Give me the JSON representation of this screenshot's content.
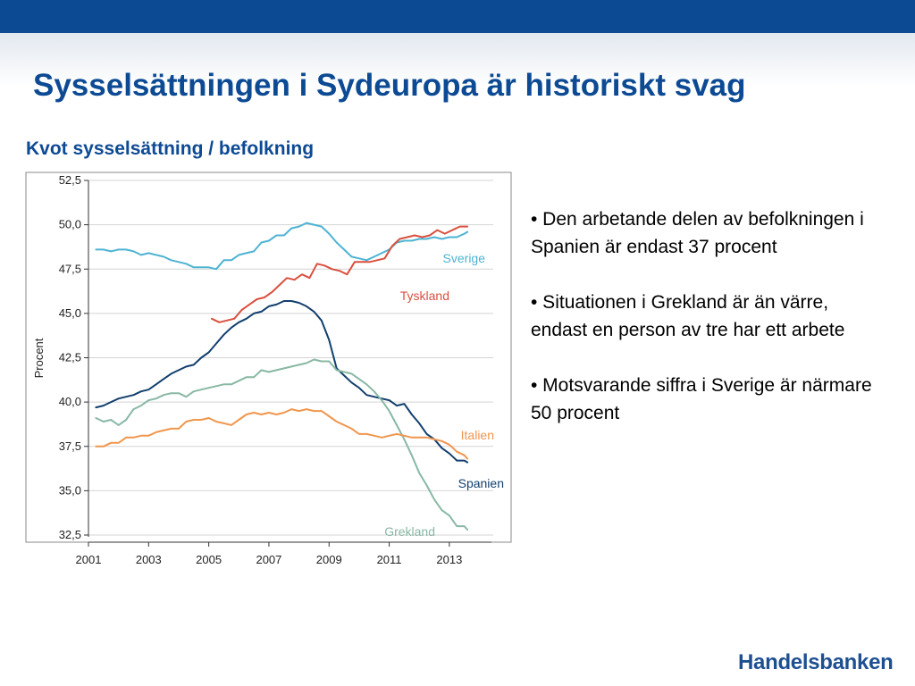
{
  "header": {
    "title": "Sysselsättningen i Sydeuropa är historiskt svag",
    "chart_heading": "Kvot sysselsättning / befolkning"
  },
  "bullets": [
    "• Den arbetande delen av befolkningen i Spanien är endast 37 procent",
    "• Situationen i Grekland är än värre, endast en person av tre har ett arbete",
    "• Motsvarande siffra i Sverige är närmare 50 procent"
  ],
  "brand": "Handelsbanken",
  "chart_data": {
    "type": "line",
    "title": "Kvot sysselsättning / befolkning",
    "ylabel": "Procent",
    "xlabel": "",
    "xlim": [
      2001,
      2014.4
    ],
    "ylim": [
      32.5,
      52.5
    ],
    "xticks": [
      2001,
      2003,
      2005,
      2007,
      2009,
      2011,
      2013
    ],
    "xtick_labels": [
      "2001",
      "2003",
      "2005",
      "2007",
      "2009",
      "2011",
      "2013"
    ],
    "yticks": [
      32.5,
      35.0,
      37.5,
      40.0,
      42.5,
      45.0,
      47.5,
      50.0,
      52.5
    ],
    "ytick_labels": [
      "32,5",
      "35,0",
      "37,5",
      "40,0",
      "42,5",
      "45,0",
      "47,5",
      "50,0",
      "52,5"
    ],
    "grid": true,
    "legend": "inline labels",
    "series": [
      {
        "name": "Sverige",
        "color": "#4eb3d3",
        "x": [
          2001.25,
          2001.5,
          2001.75,
          2002,
          2002.25,
          2002.5,
          2002.75,
          2003,
          2003.25,
          2003.5,
          2003.75,
          2004,
          2004.25,
          2004.5,
          2004.75,
          2005,
          2005.25,
          2005.5,
          2005.75,
          2006,
          2006.25,
          2006.5,
          2006.75,
          2007,
          2007.25,
          2007.5,
          2007.75,
          2008,
          2008.25,
          2008.5,
          2008.75,
          2009,
          2009.25,
          2009.5,
          2009.75,
          2010,
          2010.25,
          2010.5,
          2010.75,
          2011,
          2011.25,
          2011.5,
          2011.75,
          2012,
          2012.25,
          2012.5,
          2012.75,
          2013,
          2013.25,
          2013.5,
          2013.6
        ],
        "values": [
          48.6,
          48.6,
          48.5,
          48.6,
          48.6,
          48.5,
          48.3,
          48.4,
          48.3,
          48.2,
          48.0,
          47.9,
          47.8,
          47.6,
          47.6,
          47.6,
          47.5,
          48.0,
          48.0,
          48.3,
          48.4,
          48.5,
          49.0,
          49.1,
          49.4,
          49.4,
          49.8,
          49.9,
          50.1,
          50.0,
          49.9,
          49.5,
          49.0,
          48.6,
          48.2,
          48.1,
          48.0,
          48.2,
          48.4,
          48.6,
          49.0,
          49.1,
          49.1,
          49.2,
          49.2,
          49.3,
          49.2,
          49.3,
          49.3,
          49.5,
          49.6
        ]
      },
      {
        "name": "Tyskland",
        "color": "#d9503e",
        "x": [
          2005.1,
          2005.35,
          2005.6,
          2005.85,
          2006.1,
          2006.35,
          2006.6,
          2006.85,
          2007.1,
          2007.35,
          2007.6,
          2007.85,
          2008.1,
          2008.35,
          2008.6,
          2008.85,
          2009.1,
          2009.35,
          2009.6,
          2009.85,
          2010.1,
          2010.35,
          2010.6,
          2010.85,
          2011.1,
          2011.35,
          2011.6,
          2011.85,
          2012.1,
          2012.35,
          2012.6,
          2012.85,
          2013.1,
          2013.35,
          2013.6
        ],
        "values": [
          44.7,
          44.5,
          44.6,
          44.7,
          45.2,
          45.5,
          45.8,
          45.9,
          46.2,
          46.6,
          47.0,
          46.9,
          47.2,
          47.0,
          47.8,
          47.7,
          47.5,
          47.4,
          47.2,
          47.9,
          47.9,
          47.9,
          48.0,
          48.1,
          48.8,
          49.2,
          49.3,
          49.4,
          49.3,
          49.4,
          49.7,
          49.5,
          49.7,
          49.9,
          49.9
        ]
      },
      {
        "name": "Spanien",
        "color": "#123f6e",
        "x": [
          2001.25,
          2001.5,
          2001.75,
          2002,
          2002.25,
          2002.5,
          2002.75,
          2003,
          2003.25,
          2003.5,
          2003.75,
          2004,
          2004.25,
          2004.5,
          2004.75,
          2005,
          2005.25,
          2005.5,
          2005.75,
          2006,
          2006.25,
          2006.5,
          2006.75,
          2007,
          2007.25,
          2007.5,
          2007.75,
          2008,
          2008.25,
          2008.5,
          2008.75,
          2009,
          2009.25,
          2009.5,
          2009.75,
          2010,
          2010.25,
          2010.5,
          2010.75,
          2011,
          2011.25,
          2011.5,
          2011.75,
          2012,
          2012.25,
          2012.5,
          2012.75,
          2013,
          2013.25,
          2013.5,
          2013.6
        ],
        "values": [
          39.7,
          39.8,
          40.0,
          40.2,
          40.3,
          40.4,
          40.6,
          40.7,
          41.0,
          41.3,
          41.6,
          41.8,
          42.0,
          42.1,
          42.5,
          42.8,
          43.3,
          43.8,
          44.2,
          44.5,
          44.7,
          45.0,
          45.1,
          45.4,
          45.5,
          45.7,
          45.7,
          45.6,
          45.4,
          45.1,
          44.6,
          43.5,
          41.9,
          41.5,
          41.1,
          40.8,
          40.4,
          40.3,
          40.2,
          40.1,
          39.8,
          39.9,
          39.3,
          38.8,
          38.2,
          37.9,
          37.4,
          37.1,
          36.7,
          36.7,
          36.6
        ]
      },
      {
        "name": "Grekland",
        "color": "#88b8a3",
        "x": [
          2001.25,
          2001.5,
          2001.75,
          2002,
          2002.25,
          2002.5,
          2002.75,
          2003,
          2003.25,
          2003.5,
          2003.75,
          2004,
          2004.25,
          2004.5,
          2004.75,
          2005,
          2005.25,
          2005.5,
          2005.75,
          2006,
          2006.25,
          2006.5,
          2006.75,
          2007,
          2007.25,
          2007.5,
          2007.75,
          2008,
          2008.25,
          2008.5,
          2008.75,
          2009,
          2009.25,
          2009.5,
          2009.75,
          2010,
          2010.25,
          2010.5,
          2010.75,
          2011,
          2011.25,
          2011.5,
          2011.75,
          2012,
          2012.25,
          2012.5,
          2012.75,
          2013,
          2013.25,
          2013.5,
          2013.6
        ],
        "values": [
          39.1,
          38.9,
          39.0,
          38.7,
          39.0,
          39.6,
          39.8,
          40.1,
          40.2,
          40.4,
          40.5,
          40.5,
          40.3,
          40.6,
          40.7,
          40.8,
          40.9,
          41.0,
          41.0,
          41.2,
          41.4,
          41.4,
          41.8,
          41.7,
          41.8,
          41.9,
          42.0,
          42.1,
          42.2,
          42.4,
          42.3,
          42.3,
          41.8,
          41.7,
          41.6,
          41.3,
          41.0,
          40.6,
          40.1,
          39.5,
          38.7,
          37.9,
          37.0,
          36.0,
          35.3,
          34.5,
          33.9,
          33.6,
          33.0,
          33.0,
          32.8
        ]
      },
      {
        "name": "Italien",
        "color": "#f0964d",
        "x": [
          2001.25,
          2001.5,
          2001.75,
          2002,
          2002.25,
          2002.5,
          2002.75,
          2003,
          2003.25,
          2003.5,
          2003.75,
          2004,
          2004.25,
          2004.5,
          2004.75,
          2005,
          2005.25,
          2005.5,
          2005.75,
          2006,
          2006.25,
          2006.5,
          2006.75,
          2007,
          2007.25,
          2007.5,
          2007.75,
          2008,
          2008.25,
          2008.5,
          2008.75,
          2009,
          2009.25,
          2009.5,
          2009.75,
          2010,
          2010.25,
          2010.5,
          2010.75,
          2011,
          2011.25,
          2011.5,
          2011.75,
          2012,
          2012.25,
          2012.5,
          2012.75,
          2013,
          2013.25,
          2013.5,
          2013.6
        ],
        "values": [
          37.5,
          37.5,
          37.7,
          37.7,
          38.0,
          38.0,
          38.1,
          38.1,
          38.3,
          38.4,
          38.5,
          38.5,
          38.9,
          39.0,
          39.0,
          39.1,
          38.9,
          38.8,
          38.7,
          39.0,
          39.3,
          39.4,
          39.3,
          39.4,
          39.3,
          39.4,
          39.6,
          39.5,
          39.6,
          39.5,
          39.5,
          39.2,
          38.9,
          38.7,
          38.5,
          38.2,
          38.2,
          38.1,
          38.0,
          38.1,
          38.2,
          38.1,
          38.0,
          38.0,
          38.0,
          37.9,
          37.8,
          37.6,
          37.2,
          37.0,
          36.8
        ]
      }
    ],
    "annotations": [
      {
        "text": "Sverige",
        "color": "#4eb3d3"
      },
      {
        "text": "Tyskland",
        "color": "#d9503e"
      },
      {
        "text": "Italien",
        "color": "#f0964d"
      },
      {
        "text": "Spanien",
        "color": "#123f6e"
      },
      {
        "text": "Grekland",
        "color": "#88b8a3"
      }
    ]
  }
}
